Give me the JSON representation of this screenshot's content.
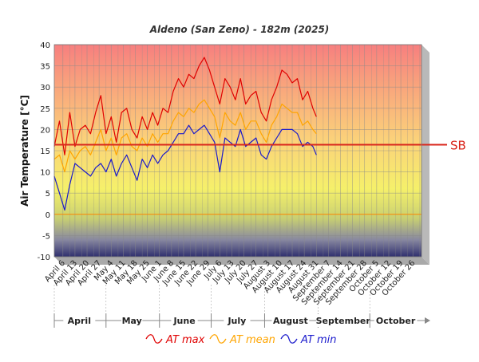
{
  "chart_data": {
    "type": "line",
    "title": "Aldeno (San Zeno) - 182m (2025)",
    "ylabel": "Air Temperature [°C]",
    "xlabel": "",
    "ylim": [
      -10,
      40
    ],
    "yticks": [
      -10,
      -5,
      0,
      5,
      10,
      15,
      20,
      25,
      30,
      35,
      40
    ],
    "xlim": [
      "2025-04-01",
      "2025-10-31"
    ],
    "x_tick_labels": [
      {
        "date": "2025-04-06",
        "label": "April 6"
      },
      {
        "date": "2025-04-13",
        "label": "April 13"
      },
      {
        "date": "2025-04-20",
        "label": "April 20"
      },
      {
        "date": "2025-04-27",
        "label": "April 27"
      },
      {
        "date": "2025-05-04",
        "label": "May 4"
      },
      {
        "date": "2025-05-11",
        "label": "May 11"
      },
      {
        "date": "2025-05-18",
        "label": "May 18"
      },
      {
        "date": "2025-05-25",
        "label": "May 25"
      },
      {
        "date": "2025-06-01",
        "label": "June 1"
      },
      {
        "date": "2025-06-08",
        "label": "June 8"
      },
      {
        "date": "2025-06-15",
        "label": "June 15"
      },
      {
        "date": "2025-06-22",
        "label": "June 22"
      },
      {
        "date": "2025-06-29",
        "label": "June 29"
      },
      {
        "date": "2025-07-06",
        "label": "July 6"
      },
      {
        "date": "2025-07-13",
        "label": "July 13"
      },
      {
        "date": "2025-07-20",
        "label": "July 20"
      },
      {
        "date": "2025-07-27",
        "label": "July 27"
      },
      {
        "date": "2025-08-03",
        "label": "August 3"
      },
      {
        "date": "2025-08-10",
        "label": "August 10"
      },
      {
        "date": "2025-08-17",
        "label": "August 17"
      },
      {
        "date": "2025-08-24",
        "label": "August 24"
      },
      {
        "date": "2025-08-31",
        "label": "August 31"
      },
      {
        "date": "2025-09-07",
        "label": "September 7"
      },
      {
        "date": "2025-09-14",
        "label": "September 14"
      },
      {
        "date": "2025-09-21",
        "label": "September 21"
      },
      {
        "date": "2025-09-28",
        "label": "September 28"
      },
      {
        "date": "2025-10-05",
        "label": "October 5"
      },
      {
        "date": "2025-10-12",
        "label": "October 12"
      },
      {
        "date": "2025-10-19",
        "label": "October 19"
      },
      {
        "date": "2025-10-26",
        "label": "October 26"
      }
    ],
    "months": [
      {
        "label": "April",
        "start": "2025-04-01",
        "end": "2025-04-30"
      },
      {
        "label": "May",
        "start": "2025-05-01",
        "end": "2025-05-31"
      },
      {
        "label": "June",
        "start": "2025-06-01",
        "end": "2025-06-30"
      },
      {
        "label": "July",
        "start": "2025-07-01",
        "end": "2025-07-31"
      },
      {
        "label": "August",
        "start": "2025-08-01",
        "end": "2025-08-31"
      },
      {
        "label": "September",
        "start": "2025-09-01",
        "end": "2025-09-30"
      },
      {
        "label": "October",
        "start": "2025-10-01",
        "end": "2025-10-31"
      }
    ],
    "reference_line": {
      "label": "SB",
      "value": 16.4,
      "color": "#d9261c"
    },
    "zero_line": {
      "value": 0,
      "color": "#ff8800"
    },
    "grid": true,
    "legend_position": "bottom",
    "series": [
      {
        "name": "AT max",
        "color": "#e00000",
        "x": [
          "2025-04-01",
          "2025-04-04",
          "2025-04-07",
          "2025-04-10",
          "2025-04-13",
          "2025-04-16",
          "2025-04-19",
          "2025-04-22",
          "2025-04-25",
          "2025-04-28",
          "2025-05-01",
          "2025-05-04",
          "2025-05-07",
          "2025-05-10",
          "2025-05-13",
          "2025-05-16",
          "2025-05-19",
          "2025-05-22",
          "2025-05-25",
          "2025-05-28",
          "2025-05-31",
          "2025-06-03",
          "2025-06-06",
          "2025-06-09",
          "2025-06-12",
          "2025-06-15",
          "2025-06-18",
          "2025-06-21",
          "2025-06-24",
          "2025-06-27",
          "2025-06-30",
          "2025-07-03",
          "2025-07-06",
          "2025-07-09",
          "2025-07-12",
          "2025-07-15",
          "2025-07-18",
          "2025-07-21",
          "2025-07-24",
          "2025-07-27",
          "2025-07-30",
          "2025-08-02",
          "2025-08-05",
          "2025-08-08",
          "2025-08-11",
          "2025-08-14",
          "2025-08-17",
          "2025-08-20",
          "2025-08-23",
          "2025-08-26",
          "2025-08-29",
          "2025-08-31"
        ],
        "values": [
          16,
          22,
          14,
          24,
          16,
          20,
          21,
          19,
          24,
          28,
          19,
          23,
          17,
          24,
          25,
          20,
          18,
          23,
          20,
          24,
          21,
          25,
          24,
          29,
          32,
          30,
          33,
          32,
          35,
          37,
          34,
          30,
          26,
          32,
          30,
          27,
          32,
          26,
          28,
          29,
          24,
          22,
          27,
          30,
          34,
          33,
          31,
          32,
          27,
          29,
          25,
          23
        ]
      },
      {
        "name": "AT mean",
        "color": "#ffa500",
        "x": [
          "2025-04-01",
          "2025-04-04",
          "2025-04-07",
          "2025-04-10",
          "2025-04-13",
          "2025-04-16",
          "2025-04-19",
          "2025-04-22",
          "2025-04-25",
          "2025-04-28",
          "2025-05-01",
          "2025-05-04",
          "2025-05-07",
          "2025-05-10",
          "2025-05-13",
          "2025-05-16",
          "2025-05-19",
          "2025-05-22",
          "2025-05-25",
          "2025-05-28",
          "2025-05-31",
          "2025-06-03",
          "2025-06-06",
          "2025-06-09",
          "2025-06-12",
          "2025-06-15",
          "2025-06-18",
          "2025-06-21",
          "2025-06-24",
          "2025-06-27",
          "2025-06-30",
          "2025-07-03",
          "2025-07-06",
          "2025-07-09",
          "2025-07-12",
          "2025-07-15",
          "2025-07-18",
          "2025-07-21",
          "2025-07-24",
          "2025-07-27",
          "2025-07-30",
          "2025-08-02",
          "2025-08-05",
          "2025-08-08",
          "2025-08-11",
          "2025-08-14",
          "2025-08-17",
          "2025-08-20",
          "2025-08-23",
          "2025-08-26",
          "2025-08-29",
          "2025-08-31"
        ],
        "values": [
          13,
          14,
          10,
          15,
          13,
          15,
          16,
          14,
          17,
          20,
          15,
          18,
          14,
          18,
          19,
          16,
          15,
          18,
          16,
          19,
          17,
          19,
          19,
          22,
          24,
          23,
          25,
          24,
          26,
          27,
          25,
          23,
          18,
          24,
          22,
          21,
          24,
          20,
          22,
          22,
          19,
          17,
          21,
          23,
          26,
          25,
          24,
          24,
          21,
          22,
          20,
          19
        ]
      },
      {
        "name": "AT min",
        "color": "#1a1acc",
        "x": [
          "2025-04-01",
          "2025-04-04",
          "2025-04-07",
          "2025-04-10",
          "2025-04-13",
          "2025-04-16",
          "2025-04-19",
          "2025-04-22",
          "2025-04-25",
          "2025-04-28",
          "2025-05-01",
          "2025-05-04",
          "2025-05-07",
          "2025-05-10",
          "2025-05-13",
          "2025-05-16",
          "2025-05-19",
          "2025-05-22",
          "2025-05-25",
          "2025-05-28",
          "2025-05-31",
          "2025-06-03",
          "2025-06-06",
          "2025-06-09",
          "2025-06-12",
          "2025-06-15",
          "2025-06-18",
          "2025-06-21",
          "2025-06-24",
          "2025-06-27",
          "2025-06-30",
          "2025-07-03",
          "2025-07-06",
          "2025-07-09",
          "2025-07-12",
          "2025-07-15",
          "2025-07-18",
          "2025-07-21",
          "2025-07-24",
          "2025-07-27",
          "2025-07-30",
          "2025-08-02",
          "2025-08-05",
          "2025-08-08",
          "2025-08-11",
          "2025-08-14",
          "2025-08-17",
          "2025-08-20",
          "2025-08-23",
          "2025-08-26",
          "2025-08-29",
          "2025-08-31"
        ],
        "values": [
          9,
          5,
          1,
          7,
          12,
          11,
          10,
          9,
          11,
          12,
          10,
          13,
          9,
          12,
          14,
          11,
          8,
          13,
          11,
          14,
          12,
          14,
          15,
          17,
          19,
          19,
          21,
          19,
          20,
          21,
          19,
          17,
          10,
          18,
          17,
          16,
          20,
          16,
          17,
          18,
          14,
          13,
          16,
          18,
          20,
          20,
          20,
          19,
          16,
          17,
          16,
          14
        ]
      }
    ]
  }
}
